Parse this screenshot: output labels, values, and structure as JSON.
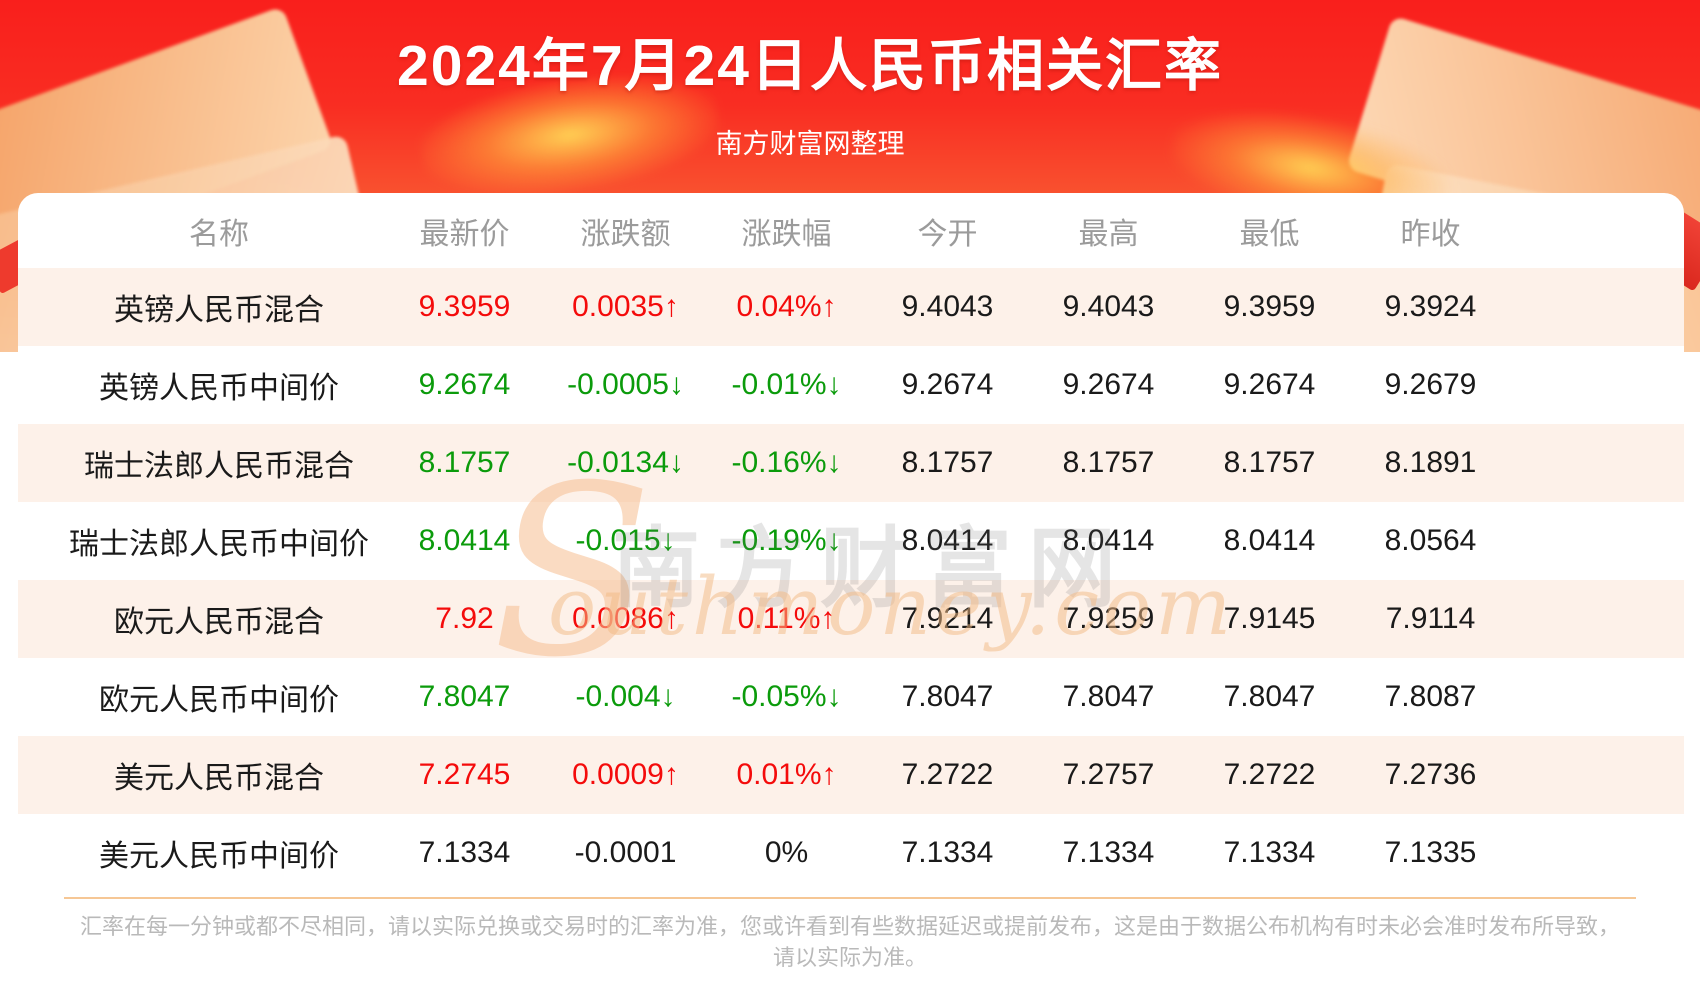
{
  "page_title": "2024年7月24日人民币相关汇率",
  "subtitle": "南方财富网整理",
  "watermark": {
    "initial": "S",
    "cn": "南方财富网",
    "en": "outhmoney.com"
  },
  "chart_data": {
    "type": "table",
    "title": "2024年7月24日人民币相关汇率",
    "columns": [
      "名称",
      "最新价",
      "涨跌额",
      "涨跌幅",
      "今开",
      "最高",
      "最低",
      "昨收"
    ],
    "rows": [
      {
        "name": "英镑人民币混合",
        "latest": "9.3959",
        "change": "0.0035↑",
        "pct": "0.04%↑",
        "open": "9.4043",
        "high": "9.4043",
        "low": "9.3959",
        "prev_close": "9.3924",
        "trend": "up"
      },
      {
        "name": "英镑人民币中间价",
        "latest": "9.2674",
        "change": "-0.0005↓",
        "pct": "-0.01%↓",
        "open": "9.2674",
        "high": "9.2674",
        "low": "9.2674",
        "prev_close": "9.2679",
        "trend": "down"
      },
      {
        "name": "瑞士法郎人民币混合",
        "latest": "8.1757",
        "change": "-0.0134↓",
        "pct": "-0.16%↓",
        "open": "8.1757",
        "high": "8.1757",
        "low": "8.1757",
        "prev_close": "8.1891",
        "trend": "down"
      },
      {
        "name": "瑞士法郎人民币中间价",
        "latest": "8.0414",
        "change": "-0.015↓",
        "pct": "-0.19%↓",
        "open": "8.0414",
        "high": "8.0414",
        "low": "8.0414",
        "prev_close": "8.0564",
        "trend": "down"
      },
      {
        "name": "欧元人民币混合",
        "latest": "7.92",
        "change": "0.0086↑",
        "pct": "0.11%↑",
        "open": "7.9214",
        "high": "7.9259",
        "low": "7.9145",
        "prev_close": "7.9114",
        "trend": "up"
      },
      {
        "name": "欧元人民币中间价",
        "latest": "7.8047",
        "change": "-0.004↓",
        "pct": "-0.05%↓",
        "open": "7.8047",
        "high": "7.8047",
        "low": "7.8047",
        "prev_close": "7.8087",
        "trend": "down"
      },
      {
        "name": "美元人民币混合",
        "latest": "7.2745",
        "change": "0.0009↑",
        "pct": "0.01%↑",
        "open": "7.2722",
        "high": "7.2757",
        "low": "7.2722",
        "prev_close": "7.2736",
        "trend": "up"
      },
      {
        "name": "美元人民币中间价",
        "latest": "7.1334",
        "change": "-0.0001",
        "pct": "0%",
        "open": "7.1334",
        "high": "7.1334",
        "low": "7.1334",
        "prev_close": "7.1335",
        "trend": "flat"
      }
    ]
  },
  "footer": {
    "line1": "汇率在每一分钟或都不尽相同，请以实际兑换或交易时的汇率为准，您或许看到有些数据延迟或提前发布，这是由于数据公布机构有时未必会准时发布所导致，",
    "line2": "请以实际为准。"
  },
  "colors": {
    "rise": "#f40b0b",
    "fall": "#0b9b0b",
    "neutral": "#1a1a1a",
    "header_text": "#9b9b9b",
    "row_alt_bg": "#fdf1e9",
    "divider": "#f6c795",
    "banner_red": "#f92d22"
  }
}
